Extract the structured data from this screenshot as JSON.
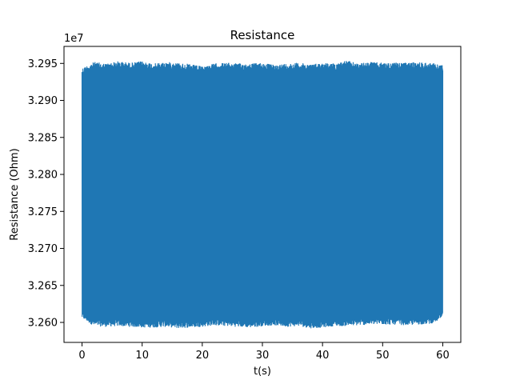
{
  "chart_data": {
    "type": "line",
    "title": "Resistance",
    "xlabel": "t(s)",
    "ylabel": "Resistance (Ohm)",
    "offset_text": "1e7",
    "xlim": [
      -3,
      63
    ],
    "ylim": [
      3.2573,
      3.2973
    ],
    "x_ticks": [
      0,
      10,
      20,
      30,
      40,
      50,
      60
    ],
    "x_tick_labels": [
      "0",
      "10",
      "20",
      "30",
      "40",
      "50",
      "60"
    ],
    "y_ticks": [
      3.26,
      3.265,
      3.27,
      3.275,
      3.28,
      3.285,
      3.29,
      3.295
    ],
    "y_tick_labels": [
      "3.260",
      "3.265",
      "3.270",
      "3.275",
      "3.280",
      "3.285",
      "3.290",
      "3.295"
    ],
    "grid": false,
    "series": [
      {
        "color": "#1f77b4",
        "x_range": [
          0,
          60
        ],
        "upper_envelope": [
          [
            0,
            3.2944
          ],
          [
            2,
            3.2952
          ],
          [
            4,
            3.295
          ],
          [
            6,
            3.2953
          ],
          [
            8,
            3.2951
          ],
          [
            10,
            3.2953
          ],
          [
            12,
            3.295
          ],
          [
            14,
            3.2952
          ],
          [
            16,
            3.2951
          ],
          [
            18,
            3.2949
          ],
          [
            20,
            3.2946
          ],
          [
            22,
            3.295
          ],
          [
            24,
            3.2951
          ],
          [
            26,
            3.295
          ],
          [
            28,
            3.295
          ],
          [
            30,
            3.2951
          ],
          [
            32,
            3.2948
          ],
          [
            34,
            3.295
          ],
          [
            36,
            3.2951
          ],
          [
            38,
            3.2949
          ],
          [
            40,
            3.2951
          ],
          [
            42,
            3.295
          ],
          [
            44,
            3.2954
          ],
          [
            46,
            3.295
          ],
          [
            48,
            3.2952
          ],
          [
            50,
            3.2951
          ],
          [
            52,
            3.2951
          ],
          [
            54,
            3.2951
          ],
          [
            56,
            3.2952
          ],
          [
            58,
            3.2951
          ],
          [
            60,
            3.2948
          ]
        ],
        "lower_envelope": [
          [
            0,
            3.2605
          ],
          [
            2,
            3.2595
          ],
          [
            4,
            3.2594
          ],
          [
            6,
            3.2595
          ],
          [
            8,
            3.2594
          ],
          [
            10,
            3.2593
          ],
          [
            12,
            3.2593
          ],
          [
            14,
            3.2594
          ],
          [
            16,
            3.2592
          ],
          [
            18,
            3.2593
          ],
          [
            20,
            3.2594
          ],
          [
            22,
            3.2596
          ],
          [
            24,
            3.2595
          ],
          [
            26,
            3.2594
          ],
          [
            28,
            3.2593
          ],
          [
            30,
            3.2595
          ],
          [
            32,
            3.2596
          ],
          [
            34,
            3.2594
          ],
          [
            36,
            3.2595
          ],
          [
            38,
            3.2592
          ],
          [
            40,
            3.2593
          ],
          [
            42,
            3.2595
          ],
          [
            44,
            3.2595
          ],
          [
            46,
            3.2596
          ],
          [
            48,
            3.2597
          ],
          [
            50,
            3.2597
          ],
          [
            52,
            3.2597
          ],
          [
            54,
            3.2596
          ],
          [
            56,
            3.2597
          ],
          [
            58,
            3.2598
          ],
          [
            60,
            3.2605
          ]
        ]
      }
    ]
  }
}
